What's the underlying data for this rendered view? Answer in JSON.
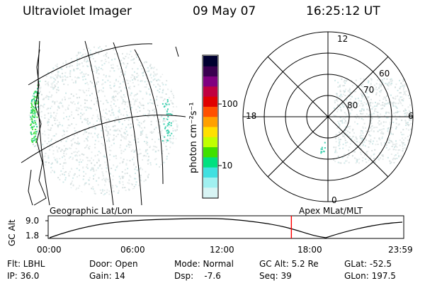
{
  "header": {
    "instrument": "Ultraviolet Imager",
    "date": "09 May 07",
    "time": "16:25:12 UT"
  },
  "colorbar": {
    "unit_label": "photon cm⁻²s⁻¹",
    "tick_100": "100",
    "tick_10": "10",
    "colors": [
      "#000030",
      "#3a0050",
      "#800080",
      "#c00040",
      "#e00000",
      "#ff5000",
      "#ffa000",
      "#ffe000",
      "#c0ff00",
      "#40e000",
      "#00e080",
      "#40e0e0",
      "#a0f0f0",
      "#d8f4f4"
    ]
  },
  "polar": {
    "mlt_top": "12",
    "mlt_left": "18",
    "mlt_right": "6",
    "mlt_bottom": "0",
    "lat_60": "60",
    "lat_70": "70",
    "lat_80": "80"
  },
  "timeline": {
    "ylabel": "GC Alt",
    "ymax": "9.0",
    "ymin": "1.8",
    "left_caption": "Geographic Lat/Lon",
    "right_caption": "Apex MLat/MLT",
    "ticks": [
      "00:00",
      "06:00",
      "12:00",
      "18:00",
      "23:59"
    ],
    "current_time_fraction": 0.684,
    "marker_color": "#ff0000"
  },
  "info": {
    "filter": "Flt: LBHL",
    "ip": "IP: 36.0",
    "door": "Door: Open",
    "gain": "Gain: 14",
    "mode": "Mode: Normal",
    "dsp": "Dsp:    -7.6",
    "gc_alt": "GC Alt: 5.2 Re",
    "seq": "Seq: 39",
    "glat": "GLat: -52.5",
    "glon": "GLon: 197.5"
  }
}
